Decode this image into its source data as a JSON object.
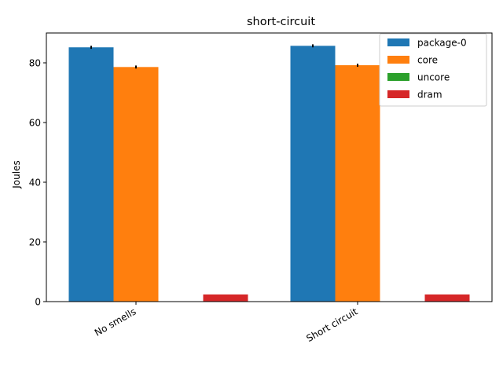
{
  "chart_data": {
    "type": "bar",
    "title": "short-circuit",
    "xlabel": "",
    "ylabel": "Joules",
    "categories": [
      "No smells",
      "Short circuit"
    ],
    "series": [
      {
        "name": "package-0",
        "values": [
          85.2,
          85.7
        ],
        "errors": [
          0.5,
          0.5
        ],
        "color": "#1f77b4"
      },
      {
        "name": "core",
        "values": [
          78.6,
          79.2
        ],
        "errors": [
          0.5,
          0.5
        ],
        "color": "#ff7f0e"
      },
      {
        "name": "uncore",
        "values": [
          0.0,
          0.0
        ],
        "errors": [
          0,
          0
        ],
        "color": "#2ca02c"
      },
      {
        "name": "dram",
        "values": [
          2.4,
          2.4
        ],
        "errors": [
          0,
          0
        ],
        "color": "#d62728"
      }
    ],
    "ylim": [
      0,
      90
    ],
    "yticks": [
      0,
      20,
      40,
      60,
      80
    ],
    "grid": false,
    "legend_position": "top-right"
  }
}
